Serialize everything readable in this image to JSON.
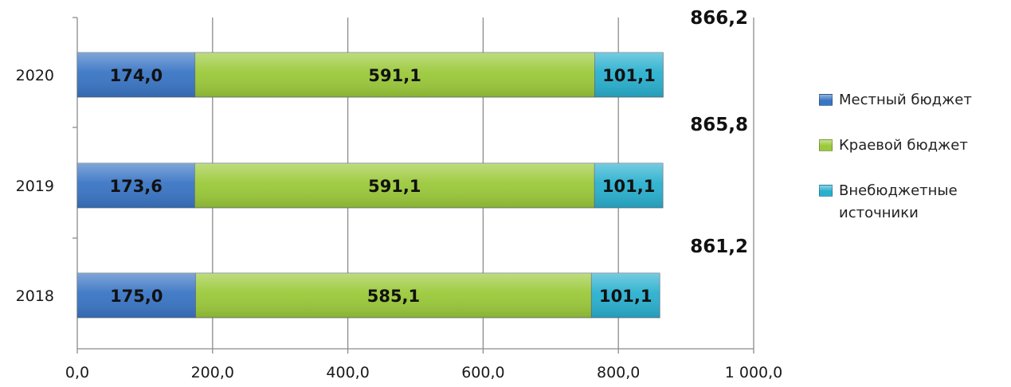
{
  "chart_data": {
    "type": "bar",
    "orientation": "horizontal",
    "stacked": true,
    "categories": [
      "2020",
      "2019",
      "2018"
    ],
    "series": [
      {
        "name": "Местный бюджет",
        "values": [
          174.0,
          173.6,
          175.0
        ],
        "labels": [
          "174,0",
          "173,6",
          "175,0"
        ],
        "color": "#3a75c4"
      },
      {
        "name": "Краевой бюджет",
        "values": [
          591.1,
          591.1,
          585.1
        ],
        "labels": [
          "591,1",
          "591,1",
          "585,1"
        ],
        "color": "#9bc93a"
      },
      {
        "name": "Внебюджетные источники",
        "values": [
          101.1,
          101.1,
          101.1
        ],
        "labels": [
          "101,1",
          "101,1",
          "101,1"
        ],
        "color": "#2ab0cf"
      }
    ],
    "totals": [
      866.2,
      865.8,
      861.2
    ],
    "total_labels": [
      "866,2",
      "865,8",
      "861,2"
    ],
    "xlim": [
      0,
      1000
    ],
    "x_ticks": [
      0,
      200,
      400,
      600,
      800,
      1000
    ],
    "x_tick_labels": [
      "0,0",
      "200,0",
      "400,0",
      "600,0",
      "800,0",
      "1 000,0"
    ],
    "grid": "vertical",
    "legend_position": "right"
  }
}
